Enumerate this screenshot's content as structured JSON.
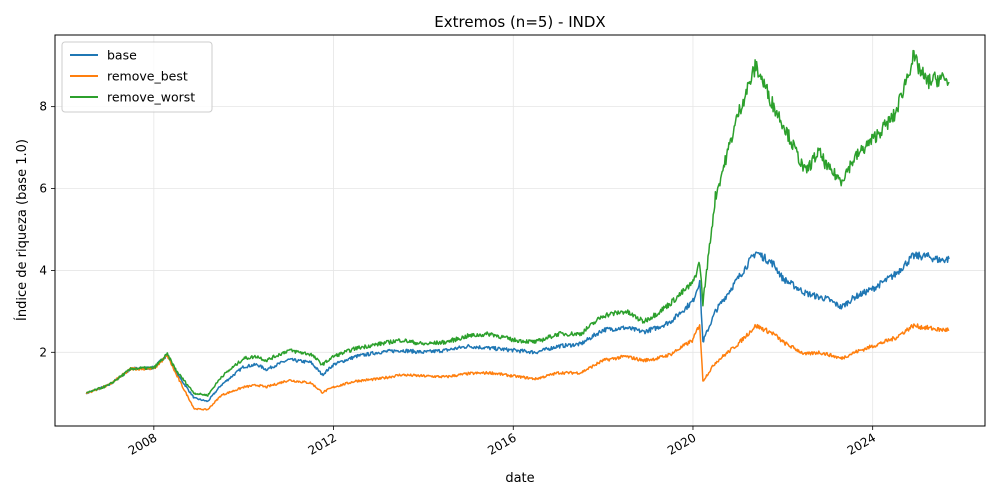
{
  "chart_data": {
    "type": "line",
    "title": "Extremos (n=5) - INDX",
    "xlabel": "date",
    "ylabel": "Índice de riqueza (base 1.0)",
    "xlim": [
      2005.8,
      2026.5
    ],
    "ylim": [
      0.2,
      9.75
    ],
    "x_ticks": [
      2008,
      2012,
      2016,
      2020,
      2024
    ],
    "x_tick_labels": [
      "2008",
      "2012",
      "2016",
      "2020",
      "2024"
    ],
    "y_ticks": [
      2,
      4,
      6,
      8
    ],
    "y_tick_labels": [
      "2",
      "4",
      "6",
      "8"
    ],
    "grid": true,
    "legend_position": "top-left",
    "series": [
      {
        "name": "base",
        "color": "#1f77b4",
        "x": [
          2006.5,
          2007.0,
          2007.5,
          2008.0,
          2008.3,
          2008.5,
          2008.9,
          2009.2,
          2009.5,
          2010.0,
          2010.3,
          2010.5,
          2011.0,
          2011.5,
          2011.75,
          2012.0,
          2012.5,
          2013.0,
          2013.5,
          2014.0,
          2014.5,
          2015.0,
          2015.5,
          2016.0,
          2016.5,
          2017.0,
          2017.5,
          2018.0,
          2018.5,
          2018.9,
          2019.2,
          2019.5,
          2020.0,
          2020.15,
          2020.22,
          2020.5,
          2021.0,
          2021.4,
          2021.8,
          2022.0,
          2022.5,
          2022.8,
          2023.0,
          2023.3,
          2023.6,
          2024.0,
          2024.5,
          2024.9,
          2025.2,
          2025.5,
          2025.7
        ],
        "y": [
          1.0,
          1.2,
          1.6,
          1.62,
          1.95,
          1.5,
          0.88,
          0.8,
          1.2,
          1.65,
          1.7,
          1.58,
          1.82,
          1.75,
          1.45,
          1.7,
          1.9,
          2.0,
          2.05,
          2.0,
          2.05,
          2.15,
          2.1,
          2.05,
          2.0,
          2.15,
          2.2,
          2.55,
          2.6,
          2.5,
          2.6,
          2.75,
          3.25,
          3.75,
          2.25,
          3.0,
          3.8,
          4.45,
          4.15,
          3.8,
          3.45,
          3.35,
          3.3,
          3.1,
          3.35,
          3.55,
          3.9,
          4.35,
          4.35,
          4.25,
          4.28
        ]
      },
      {
        "name": "remove_best",
        "color": "#ff7f0e",
        "x": [
          2006.5,
          2007.0,
          2007.5,
          2008.0,
          2008.3,
          2008.5,
          2008.9,
          2009.2,
          2009.5,
          2010.0,
          2010.3,
          2010.5,
          2011.0,
          2011.5,
          2011.75,
          2012.0,
          2012.5,
          2013.0,
          2013.5,
          2014.0,
          2014.5,
          2015.0,
          2015.5,
          2016.0,
          2016.5,
          2017.0,
          2017.5,
          2018.0,
          2018.5,
          2018.9,
          2019.2,
          2019.5,
          2020.0,
          2020.15,
          2020.22,
          2020.5,
          2021.0,
          2021.4,
          2021.8,
          2022.0,
          2022.5,
          2022.8,
          2023.0,
          2023.3,
          2023.6,
          2024.0,
          2024.5,
          2024.9,
          2025.2,
          2025.5,
          2025.7
        ],
        "y": [
          1.0,
          1.2,
          1.6,
          1.6,
          1.92,
          1.45,
          0.62,
          0.6,
          0.95,
          1.15,
          1.2,
          1.15,
          1.32,
          1.25,
          1.02,
          1.15,
          1.3,
          1.35,
          1.45,
          1.42,
          1.4,
          1.48,
          1.5,
          1.42,
          1.35,
          1.5,
          1.5,
          1.8,
          1.9,
          1.8,
          1.85,
          1.95,
          2.3,
          2.7,
          1.3,
          1.75,
          2.2,
          2.65,
          2.45,
          2.25,
          1.95,
          2.0,
          1.95,
          1.85,
          2.0,
          2.15,
          2.35,
          2.65,
          2.6,
          2.55,
          2.55
        ]
      },
      {
        "name": "remove_worst",
        "color": "#2ca02c",
        "x": [
          2006.5,
          2007.0,
          2007.5,
          2008.0,
          2008.3,
          2008.5,
          2008.9,
          2009.2,
          2009.5,
          2010.0,
          2010.3,
          2010.5,
          2011.0,
          2011.5,
          2011.75,
          2012.0,
          2012.5,
          2013.0,
          2013.5,
          2014.0,
          2014.5,
          2015.0,
          2015.5,
          2016.0,
          2016.5,
          2017.0,
          2017.5,
          2018.0,
          2018.5,
          2018.9,
          2019.2,
          2019.5,
          2020.0,
          2020.15,
          2020.22,
          2020.5,
          2021.0,
          2021.4,
          2021.8,
          2022.0,
          2022.5,
          2022.8,
          2023.0,
          2023.3,
          2023.6,
          2024.0,
          2024.5,
          2024.9,
          2025.2,
          2025.5,
          2025.7
        ],
        "y": [
          1.0,
          1.2,
          1.6,
          1.62,
          1.95,
          1.55,
          1.0,
          0.95,
          1.4,
          1.85,
          1.9,
          1.8,
          2.05,
          1.95,
          1.7,
          1.9,
          2.1,
          2.2,
          2.3,
          2.2,
          2.25,
          2.4,
          2.45,
          2.3,
          2.25,
          2.45,
          2.45,
          2.9,
          3.0,
          2.75,
          2.95,
          3.2,
          3.7,
          4.2,
          3.2,
          5.8,
          7.8,
          9.0,
          8.0,
          7.6,
          6.4,
          6.9,
          6.5,
          6.2,
          6.75,
          7.2,
          7.8,
          9.2,
          8.6,
          8.7,
          8.6
        ]
      }
    ]
  }
}
